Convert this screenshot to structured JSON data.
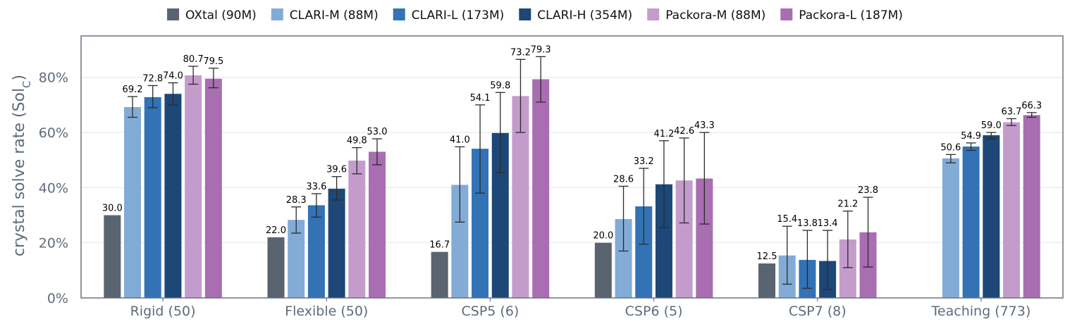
{
  "chart_data": {
    "type": "bar",
    "title": "",
    "xlabel": "",
    "ylabel": "crystal solve rate (Sol",
    "ylabel_subscript": "C",
    "ylabel_suffix": ")",
    "ylim": [
      0,
      0.95
    ],
    "yticks": [
      {
        "value": 0,
        "label": "0%"
      },
      {
        "value": 0.2,
        "label": "20%"
      },
      {
        "value": 0.4,
        "label": "40%"
      },
      {
        "value": 0.6,
        "label": "60%"
      },
      {
        "value": 0.8,
        "label": "80%"
      }
    ],
    "grid": true,
    "legend_position": "top-center",
    "categories": [
      "Rigid (50)",
      "Flexible (50)",
      "CSP5 (6)",
      "CSP6 (5)",
      "CSP7 (8)",
      "Teaching (773)"
    ],
    "series": [
      {
        "name": "OXtal (90M)",
        "color": "#5a6370",
        "values": [
          0.3,
          0.22,
          0.167,
          0.2,
          0.125,
          null
        ],
        "labels": [
          "30.0",
          "22.0",
          "16.7",
          "20.0",
          "12.5",
          ""
        ],
        "err_low": [
          null,
          null,
          null,
          null,
          null,
          null
        ],
        "err_high": [
          null,
          null,
          null,
          null,
          null,
          null
        ]
      },
      {
        "name": "CLARI-M (88M)",
        "color": "#82abd6",
        "values": [
          0.692,
          0.283,
          0.41,
          0.286,
          0.154,
          0.506
        ],
        "labels": [
          "69.2",
          "28.3",
          "41.0",
          "28.6",
          "15.4",
          "50.6"
        ],
        "err_low": [
          0.655,
          0.235,
          0.275,
          0.17,
          0.05,
          0.49
        ],
        "err_high": [
          0.73,
          0.33,
          0.548,
          0.405,
          0.26,
          0.52
        ]
      },
      {
        "name": "CLARI-L (173M)",
        "color": "#3272b5",
        "values": [
          0.728,
          0.336,
          0.541,
          0.332,
          0.138,
          0.549
        ],
        "labels": [
          "72.8",
          "33.6",
          "54.1",
          "33.2",
          "13.8",
          "54.9"
        ],
        "err_low": [
          0.69,
          0.293,
          0.38,
          0.195,
          0.035,
          0.535
        ],
        "err_high": [
          0.77,
          0.378,
          0.7,
          0.47,
          0.245,
          0.562
        ]
      },
      {
        "name": "CLARI-H (354M)",
        "color": "#1d4777",
        "values": [
          0.74,
          0.396,
          0.598,
          0.412,
          0.134,
          0.59
        ],
        "labels": [
          "74.0",
          "39.6",
          "59.8",
          "41.2",
          "13.4",
          "59.0"
        ],
        "err_low": [
          0.7,
          0.355,
          0.455,
          0.255,
          0.03,
          0.578
        ],
        "err_high": [
          0.78,
          0.44,
          0.745,
          0.57,
          0.245,
          0.6
        ]
      },
      {
        "name": "Packora-M (88M)",
        "color": "#c49ccc",
        "values": [
          0.807,
          0.498,
          0.732,
          0.426,
          0.212,
          0.637
        ],
        "labels": [
          "80.7",
          "49.8",
          "73.2",
          "42.6",
          "21.2",
          "63.7"
        ],
        "err_low": [
          0.775,
          0.45,
          0.6,
          0.272,
          0.11,
          0.625
        ],
        "err_high": [
          0.84,
          0.545,
          0.865,
          0.58,
          0.315,
          0.65
        ]
      },
      {
        "name": "Packora-L (187M)",
        "color": "#a86eb1",
        "values": [
          0.795,
          0.53,
          0.793,
          0.433,
          0.238,
          0.663
        ],
        "labels": [
          "79.5",
          "53.0",
          "79.3",
          "43.3",
          "23.8",
          "66.3"
        ],
        "err_low": [
          0.762,
          0.483,
          0.71,
          0.268,
          0.112,
          0.655
        ],
        "err_high": [
          0.833,
          0.577,
          0.875,
          0.6,
          0.365,
          0.672
        ]
      }
    ]
  }
}
